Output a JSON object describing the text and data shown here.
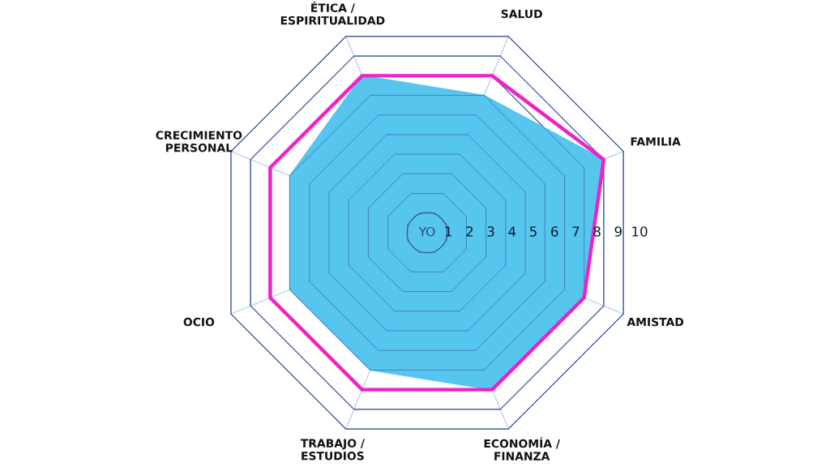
{
  "chart_data": {
    "type": "radar",
    "categories": [
      "SALUD",
      "FAMILIA",
      "AMISTAD",
      "ECONOMÍA /\nFINANZA",
      "TRABAJO /\nESTUDIOS",
      "OCIO",
      "CRECIMIENTO\nPERSONAL",
      "ÉTICA /\nESPIRITUALIDAD"
    ],
    "series": [
      {
        "color": "#4fc3ef",
        "type": "area",
        "values": [
          7,
          9,
          8,
          8,
          7,
          7,
          7,
          8
        ]
      },
      {
        "color": "#ee22c8",
        "values": [
          8,
          9,
          8,
          8,
          8,
          8,
          8,
          8
        ]
      }
    ],
    "ylim": [
      0,
      10
    ],
    "yticks": [
      1,
      2,
      3,
      4,
      5,
      6,
      7,
      8,
      9,
      10
    ],
    "grid": true,
    "annotations": [
      "YO"
    ]
  }
}
